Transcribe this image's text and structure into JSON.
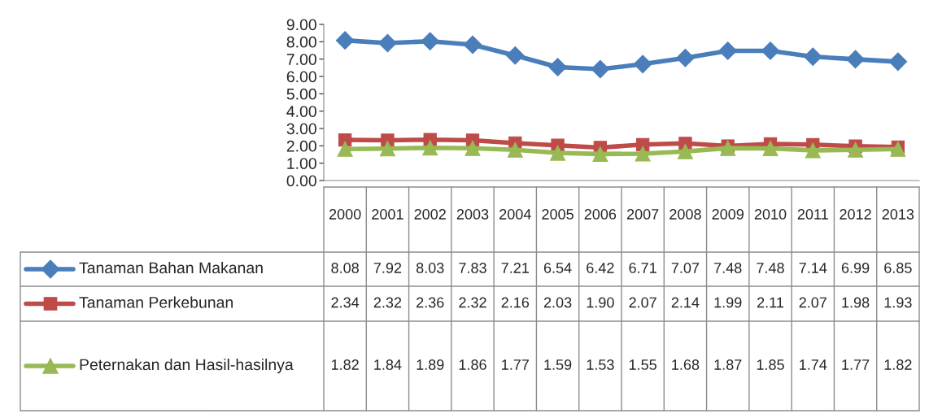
{
  "chart_data": {
    "type": "line",
    "categories": [
      "2000",
      "2001",
      "2002",
      "2003",
      "2004",
      "2005",
      "2006",
      "2007",
      "2008",
      "2009",
      "2010",
      "2011",
      "2012",
      "2013"
    ],
    "series": [
      {
        "name": "Tanaman Bahan Makanan",
        "color": "#4a7ebb",
        "marker": "diamond",
        "values": [
          8.08,
          7.92,
          8.03,
          7.83,
          7.21,
          6.54,
          6.42,
          6.71,
          7.07,
          7.48,
          7.48,
          7.14,
          6.99,
          6.85
        ]
      },
      {
        "name": "Tanaman Perkebunan",
        "color": "#be4b48",
        "marker": "square",
        "values": [
          2.34,
          2.32,
          2.36,
          2.32,
          2.16,
          2.03,
          1.9,
          2.07,
          2.14,
          1.99,
          2.11,
          2.07,
          1.98,
          1.93
        ],
        "value_labels": [
          "2.34",
          "2.32",
          "2.36",
          "2.32",
          "2.16",
          "2.03",
          "1.90",
          "2.07",
          "2.14",
          "1.99",
          "2.11",
          "2.07",
          "1.98",
          "1.93"
        ]
      },
      {
        "name": "Peternakan dan Hasil-hasilnya",
        "color": "#98b954",
        "marker": "triangle",
        "values": [
          1.82,
          1.84,
          1.89,
          1.86,
          1.77,
          1.59,
          1.53,
          1.55,
          1.68,
          1.87,
          1.85,
          1.74,
          1.77,
          1.82
        ]
      }
    ],
    "ylim": [
      0,
      9
    ],
    "yticks": [
      {
        "value": 0,
        "label": "0.00"
      },
      {
        "value": 1,
        "label": "1.00"
      },
      {
        "value": 2,
        "label": "2.00"
      },
      {
        "value": 3,
        "label": "3.00"
      },
      {
        "value": 4,
        "label": "4.00"
      },
      {
        "value": 5,
        "label": "5.00"
      },
      {
        "value": 6,
        "label": "6.00"
      },
      {
        "value": 7,
        "label": "7.00"
      },
      {
        "value": 8,
        "label": "8.00"
      },
      {
        "value": 9,
        "label": "9.00"
      }
    ],
    "data_labels": true,
    "legend": "bottom",
    "grid": false
  }
}
